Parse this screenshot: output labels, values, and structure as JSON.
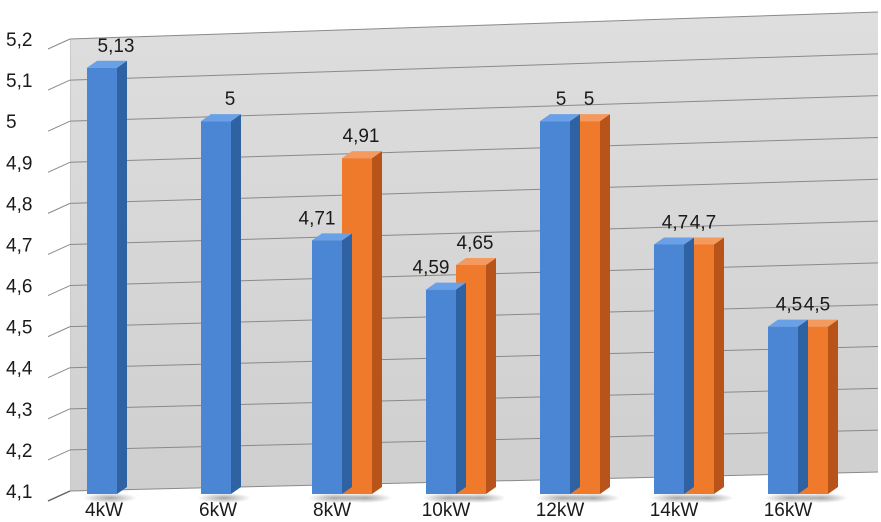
{
  "chart_data": {
    "type": "bar",
    "style": "3d-clustered",
    "categories": [
      "4kW",
      "6kW",
      "8kW",
      "10kW",
      "12kW",
      "14kW",
      "16kW"
    ],
    "series": [
      {
        "values": [
          5.13,
          5,
          4.71,
          4.59,
          5,
          4.7,
          4.5
        ],
        "value_labels": [
          "5,13",
          "5",
          "4,71",
          "4,59",
          "5",
          "4,7",
          "4,5"
        ],
        "color": "#4a86d4"
      },
      {
        "values": [
          null,
          null,
          4.91,
          4.65,
          5,
          4.7,
          4.5
        ],
        "value_labels": [
          "",
          "",
          "4,91",
          "4,65",
          "5",
          "4,7",
          "4,5"
        ],
        "color": "#f07a2c"
      }
    ],
    "ylim": [
      4.1,
      5.2
    ],
    "yticks": [
      "4,1",
      "4,2",
      "4,3",
      "4,4",
      "4,5",
      "4,6",
      "4,7",
      "4,8",
      "4,9",
      "5",
      "5,1",
      "5,2"
    ],
    "grid": true,
    "legend": "none",
    "title": "",
    "xlabel": "",
    "ylabel": ""
  }
}
